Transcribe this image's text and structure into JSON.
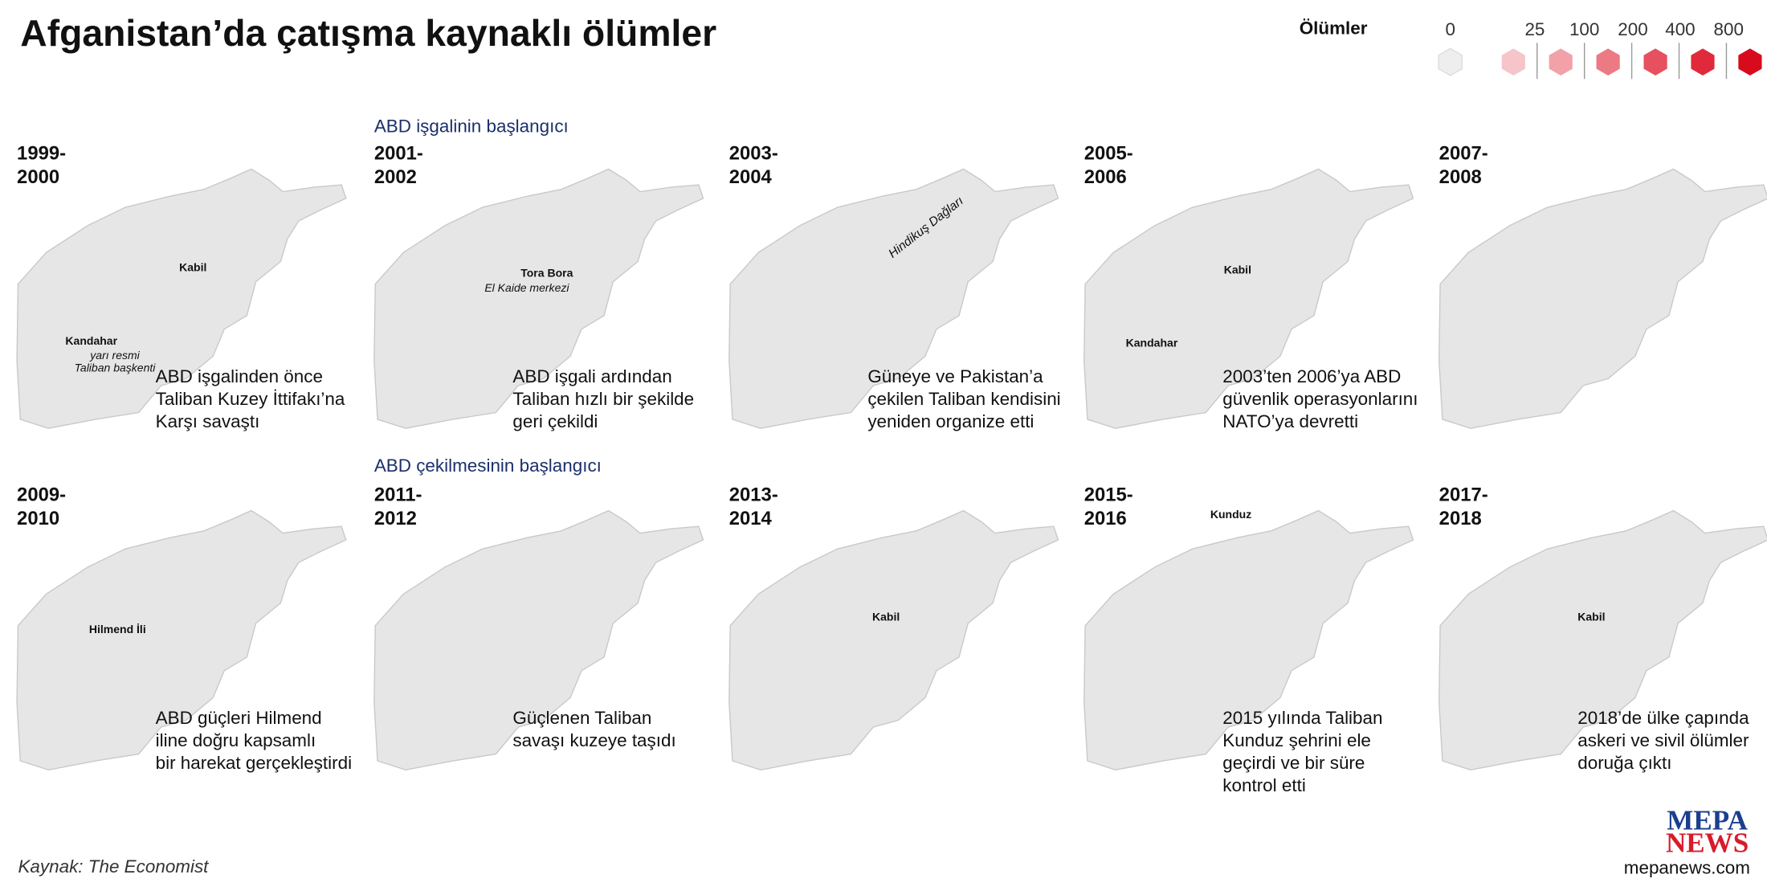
{
  "title": "Afganistan’da çatışma kaynaklı ölümler",
  "legend": {
    "title": "Ölümler",
    "labels": [
      0,
      25,
      100,
      200,
      400,
      800
    ],
    "colors": [
      "#eeeeee",
      "#f6c5c9",
      "#f2a1a8",
      "#ec7a85",
      "#e6505f",
      "#e02a3b",
      "#d80b1d"
    ]
  },
  "annotations": [
    "ABD işgalinin başlangıcı",
    "ABD çekilmesinin başlangıcı"
  ],
  "panels": [
    {
      "period": [
        "1999-",
        "2000"
      ],
      "caption": [
        "ABD işgalinden önce",
        "Taliban Kuzey İttifakı’na",
        "Karşı savaştı"
      ],
      "places": [
        {
          "name": "Kabil"
        },
        {
          "name": "Kandahar",
          "note": [
            "yarı resmi",
            "Taliban başkenti"
          ]
        }
      ]
    },
    {
      "period": [
        "2001-",
        "2002"
      ],
      "caption": [
        "ABD işgali ardından",
        "Taliban hızlı bir şekilde",
        "geri çekildi"
      ],
      "places": [
        {
          "name": "Tora Bora",
          "note": [
            "El Kaide merkezi"
          ]
        }
      ]
    },
    {
      "period": [
        "2003-",
        "2004"
      ],
      "caption": [
        "Güneye ve Pakistan’a",
        "çekilen Taliban kendisini",
        "yeniden organize etti"
      ],
      "places": [
        {
          "name": "Hindikuş Dağları"
        }
      ]
    },
    {
      "period": [
        "2005-",
        "2006"
      ],
      "caption": [
        "2003’ten 2006’ya ABD",
        "güvenlik operasyonlarını",
        "NATO’ya devretti"
      ],
      "places": [
        {
          "name": "Kabil"
        },
        {
          "name": "Kandahar"
        }
      ]
    },
    {
      "period": [
        "2007-",
        "2008"
      ],
      "caption": [],
      "places": []
    },
    {
      "period": [
        "2009-",
        "2010"
      ],
      "caption": [
        "ABD güçleri Hilmend",
        "iline doğru kapsamlı",
        "bir harekat gerçekleştirdi"
      ],
      "places": [
        {
          "name": "Hilmend İli"
        }
      ]
    },
    {
      "period": [
        "2011-",
        "2012"
      ],
      "caption": [
        "Güçlenen Taliban",
        "savaşı kuzeye taşıdı"
      ],
      "places": []
    },
    {
      "period": [
        "2013-",
        "2014"
      ],
      "caption": [],
      "places": [
        {
          "name": "Kabil"
        }
      ]
    },
    {
      "period": [
        "2015-",
        "2016"
      ],
      "caption": [
        "2015 yılında Taliban",
        "Kunduz şehrini ele",
        "geçirdi ve bir süre",
        "kontrol etti"
      ],
      "places": [
        {
          "name": "Kunduz"
        }
      ]
    },
    {
      "period": [
        "2017-",
        "2018"
      ],
      "caption": [
        "2018’de ülke çapında",
        "askeri ve sivil ölümler",
        "doruğa çıktı"
      ],
      "places": [
        {
          "name": "Kabil"
        }
      ]
    }
  ],
  "source": "Kaynak: The Economist",
  "logo": {
    "line1": "MEPA",
    "line2": "NEWS",
    "url": "mepanews.com"
  }
}
